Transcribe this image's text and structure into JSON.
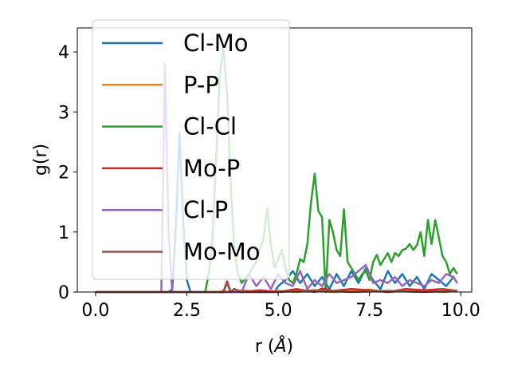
{
  "chart_data": {
    "type": "line",
    "xlabel": "r (",
    "xlabel_symbol": "Å",
    "xlabel_suffix": ")",
    "ylabel": "g(r)",
    "xlim": [
      -0.5,
      10.3
    ],
    "ylim": [
      0,
      4.4
    ],
    "xticks": [
      0.0,
      2.5,
      5.0,
      7.5,
      10.0
    ],
    "xtick_labels": [
      "0.0",
      "2.5",
      "5.0",
      "7.5",
      "10.0"
    ],
    "yticks": [
      0,
      1,
      2,
      3,
      4
    ],
    "ytick_labels": [
      "0",
      "1",
      "2",
      "3",
      "4"
    ],
    "grid": false,
    "legend_position": "upper-left",
    "series": [
      {
        "name": "Cl-Mo",
        "color": "#1f77b4",
        "x": [
          0.0,
          2.0,
          2.1,
          2.2,
          2.3,
          2.4,
          2.5,
          2.6,
          2.7,
          4.9,
          5.0,
          5.2,
          5.4,
          5.6,
          5.8,
          6.0,
          6.2,
          6.4,
          6.6,
          6.8,
          7.0,
          7.2,
          7.4,
          7.6,
          7.8,
          8.0,
          8.2,
          8.4,
          8.6,
          8.8,
          9.0,
          9.2,
          9.4,
          9.6,
          9.8,
          9.9
        ],
        "y": [
          0.0,
          0.0,
          0.05,
          1.1,
          2.65,
          1.2,
          0.2,
          0.0,
          0.0,
          0.0,
          0.1,
          0.2,
          0.35,
          0.15,
          0.3,
          0.1,
          0.25,
          0.05,
          0.3,
          0.1,
          0.35,
          0.15,
          0.4,
          0.2,
          0.05,
          0.35,
          0.15,
          0.3,
          0.1,
          0.25,
          0.05,
          0.3,
          0.2,
          0.1,
          0.25,
          0.15
        ]
      },
      {
        "name": "P-P",
        "color": "#ff7f0e",
        "x": [
          0.0,
          3.4,
          3.5,
          3.6,
          3.7,
          3.8,
          4.0,
          4.5,
          5.0,
          5.5,
          6.0,
          6.5,
          7.0,
          7.5,
          8.0,
          8.5,
          9.0,
          9.5,
          9.9
        ],
        "y": [
          0.0,
          0.0,
          0.03,
          0.0,
          0.02,
          0.0,
          0.03,
          0.0,
          0.02,
          0.0,
          0.03,
          0.0,
          0.02,
          0.04,
          0.0,
          0.02,
          0.03,
          0.0,
          0.02
        ]
      },
      {
        "name": "Cl-Cl",
        "color": "#2ca02c",
        "x": [
          0.0,
          3.0,
          3.1,
          3.2,
          3.3,
          3.4,
          3.5,
          3.6,
          3.7,
          3.8,
          3.9,
          4.0,
          4.2,
          4.4,
          4.6,
          4.7,
          4.8,
          4.9,
          5.0,
          5.1,
          5.2,
          5.3,
          5.4,
          5.5,
          5.6,
          5.7,
          5.8,
          5.9,
          6.0,
          6.1,
          6.2,
          6.3,
          6.4,
          6.5,
          6.6,
          6.7,
          6.8,
          6.9,
          7.0,
          7.1,
          7.2,
          7.3,
          7.4,
          7.5,
          7.6,
          7.7,
          7.8,
          7.9,
          8.0,
          8.1,
          8.2,
          8.3,
          8.4,
          8.5,
          8.6,
          8.7,
          8.8,
          8.9,
          9.0,
          9.1,
          9.2,
          9.3,
          9.4,
          9.5,
          9.6,
          9.7,
          9.8,
          9.9
        ],
        "y": [
          0.0,
          0.0,
          0.3,
          0.9,
          2.2,
          3.6,
          4.1,
          3.3,
          1.8,
          0.7,
          0.3,
          0.15,
          0.3,
          0.5,
          0.9,
          1.4,
          0.8,
          0.4,
          0.55,
          0.7,
          0.4,
          0.2,
          0.15,
          0.3,
          0.55,
          0.5,
          0.8,
          1.5,
          1.97,
          1.35,
          1.25,
          0.0,
          1.2,
          1.0,
          0.7,
          0.6,
          1.38,
          0.5,
          0.4,
          0.3,
          0.2,
          0.3,
          0.35,
          0.2,
          0.5,
          0.62,
          0.45,
          0.55,
          0.65,
          0.5,
          0.65,
          0.6,
          0.7,
          0.72,
          0.8,
          0.7,
          0.78,
          1.0,
          0.6,
          1.2,
          0.8,
          1.2,
          0.9,
          0.6,
          0.5,
          0.3,
          0.4,
          0.3
        ]
      },
      {
        "name": "Mo-P",
        "color": "#d62728",
        "x": [
          0.0,
          3.5,
          3.6,
          3.7,
          3.8,
          4.0,
          4.5,
          5.0,
          5.5,
          6.0,
          6.2,
          6.5,
          7.0,
          7.5,
          8.0,
          8.5,
          9.0,
          9.5,
          9.9
        ],
        "y": [
          0.0,
          0.0,
          0.18,
          0.0,
          0.05,
          0.0,
          0.03,
          0.0,
          0.05,
          0.0,
          0.06,
          0.02,
          0.05,
          0.03,
          0.0,
          0.05,
          0.03,
          0.05,
          0.02
        ]
      },
      {
        "name": "Cl-P",
        "color": "#9467bd",
        "x": [
          0.0,
          1.8,
          1.9,
          2.0,
          2.1,
          2.2,
          4.0,
          4.2,
          4.4,
          4.6,
          4.8,
          5.0,
          5.2,
          5.4,
          5.6,
          5.8,
          6.0,
          6.2,
          6.4,
          6.6,
          6.8,
          7.0,
          7.2,
          7.4,
          7.6,
          7.8,
          8.0,
          8.2,
          8.4,
          8.6,
          8.8,
          9.0,
          9.2,
          9.4,
          9.6,
          9.8,
          9.9
        ],
        "y": [
          0.0,
          0.0,
          3.8,
          1.0,
          0.0,
          0.0,
          0.0,
          0.3,
          0.1,
          0.25,
          0.05,
          0.3,
          0.15,
          0.1,
          0.35,
          0.05,
          0.2,
          0.1,
          0.3,
          0.15,
          0.2,
          0.25,
          0.35,
          0.45,
          0.15,
          0.2,
          0.15,
          0.25,
          0.1,
          0.2,
          0.15,
          0.1,
          0.2,
          0.15,
          0.3,
          0.25,
          0.15
        ]
      },
      {
        "name": "Mo-Mo",
        "color": "#8c564b",
        "x": [
          0.0,
          3.5,
          3.6,
          3.7,
          3.8,
          4.0,
          5.0,
          6.0,
          7.0,
          8.0,
          9.0,
          9.9
        ],
        "y": [
          0.0,
          0.0,
          0.15,
          0.0,
          0.05,
          0.0,
          0.0,
          0.03,
          0.0,
          0.02,
          0.0,
          0.02
        ]
      }
    ]
  }
}
